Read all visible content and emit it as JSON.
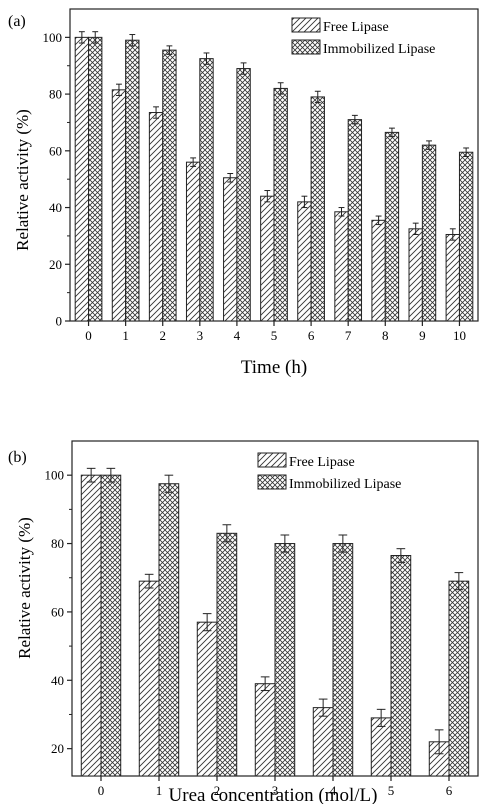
{
  "chart_data": [
    {
      "type": "bar",
      "panel_label": "(a)",
      "xlabel": "Time (h)",
      "ylabel": "Relative activity (%)",
      "categories": [
        "0",
        "1",
        "2",
        "3",
        "4",
        "5",
        "6",
        "7",
        "8",
        "9",
        "10"
      ],
      "series": [
        {
          "name": "Free Lipase",
          "pattern": "diagonal-hatch",
          "values": [
            100,
            81.5,
            73.5,
            56,
            50.5,
            44,
            42,
            38.5,
            35.5,
            32.5,
            30.5
          ],
          "errors": [
            2,
            2,
            2,
            1.5,
            1.5,
            2,
            2,
            1.5,
            1.5,
            2,
            2
          ]
        },
        {
          "name": "Immobilized Lipase",
          "pattern": "cross-hatch",
          "values": [
            100,
            99,
            95.5,
            92.5,
            89,
            82,
            79,
            71,
            66.5,
            62,
            59.5
          ],
          "errors": [
            2,
            2,
            1.5,
            2,
            2,
            2,
            2,
            1.5,
            1.5,
            1.5,
            1.5
          ]
        }
      ],
      "ylim": [
        0,
        110
      ],
      "yticks": [
        0,
        20,
        40,
        60,
        80,
        100
      ],
      "grid": false,
      "legend_position": "top-right",
      "colors": {
        "bar_fill": "#ffffff",
        "stroke": "#222222"
      }
    },
    {
      "type": "bar",
      "panel_label": "(b)",
      "xlabel": "Urea concentration (mol/L)",
      "ylabel": "Relative activity (%)",
      "categories": [
        "0",
        "1",
        "2",
        "3",
        "4",
        "5",
        "6"
      ],
      "series": [
        {
          "name": "Free Lipase",
          "pattern": "diagonal-hatch",
          "values": [
            100,
            69,
            57,
            39,
            32,
            29,
            22
          ],
          "errors": [
            2,
            2,
            2.5,
            2,
            2.5,
            2.5,
            3.5
          ]
        },
        {
          "name": "Immobilized Lipase",
          "pattern": "cross-hatch",
          "values": [
            100,
            97.5,
            83,
            80,
            80,
            76.5,
            69
          ],
          "errors": [
            2,
            2.5,
            2.5,
            2.5,
            2.5,
            2,
            2.5
          ]
        }
      ],
      "ylim": [
        12,
        110
      ],
      "yticks": [
        20,
        40,
        60,
        80,
        100
      ],
      "grid": false,
      "legend_position": "top-right",
      "colors": {
        "bar_fill": "#ffffff",
        "stroke": "#222222"
      }
    }
  ]
}
